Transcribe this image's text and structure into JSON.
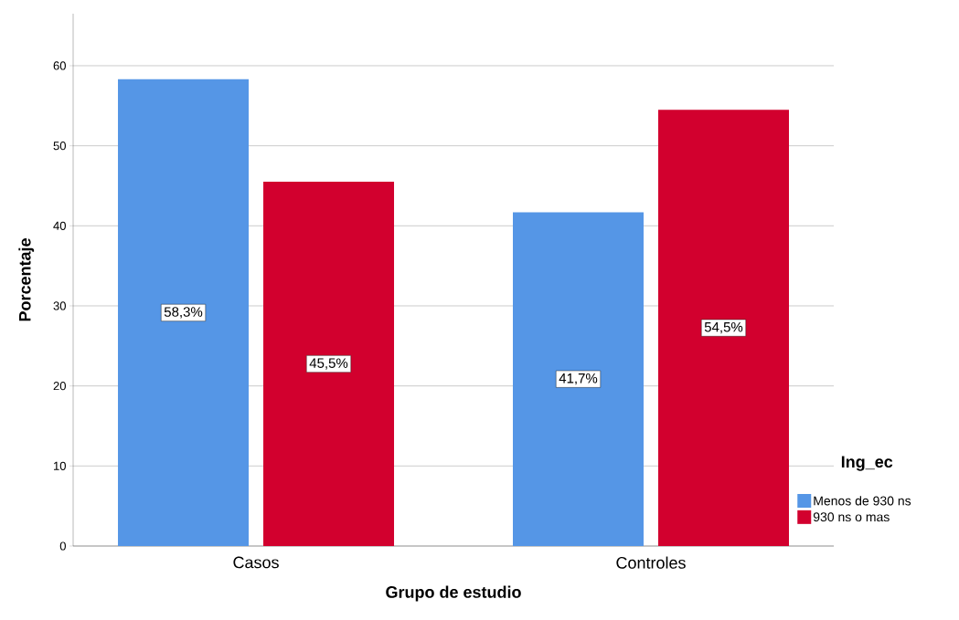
{
  "chart_data": {
    "type": "bar",
    "xlabel": "Grupo de estudio",
    "ylabel": "Porcentaje",
    "legend_title": "Ing_ec",
    "categories": [
      "Casos",
      "Controles"
    ],
    "series": [
      {
        "name": "Menos de 930 ns",
        "color": "#5596e6",
        "values": [
          58.3,
          41.7
        ],
        "value_labels": [
          "58,3%",
          "41,7%"
        ]
      },
      {
        "name": "930 ns o mas",
        "color": "#d2002e",
        "values": [
          45.5,
          54.5
        ],
        "value_labels": [
          "45,5%",
          "54,5%"
        ]
      }
    ],
    "ylim": [
      0,
      66.5
    ],
    "yticks": [
      0,
      10,
      20,
      30,
      40,
      50,
      60
    ],
    "grid": "y",
    "legend": "right"
  }
}
